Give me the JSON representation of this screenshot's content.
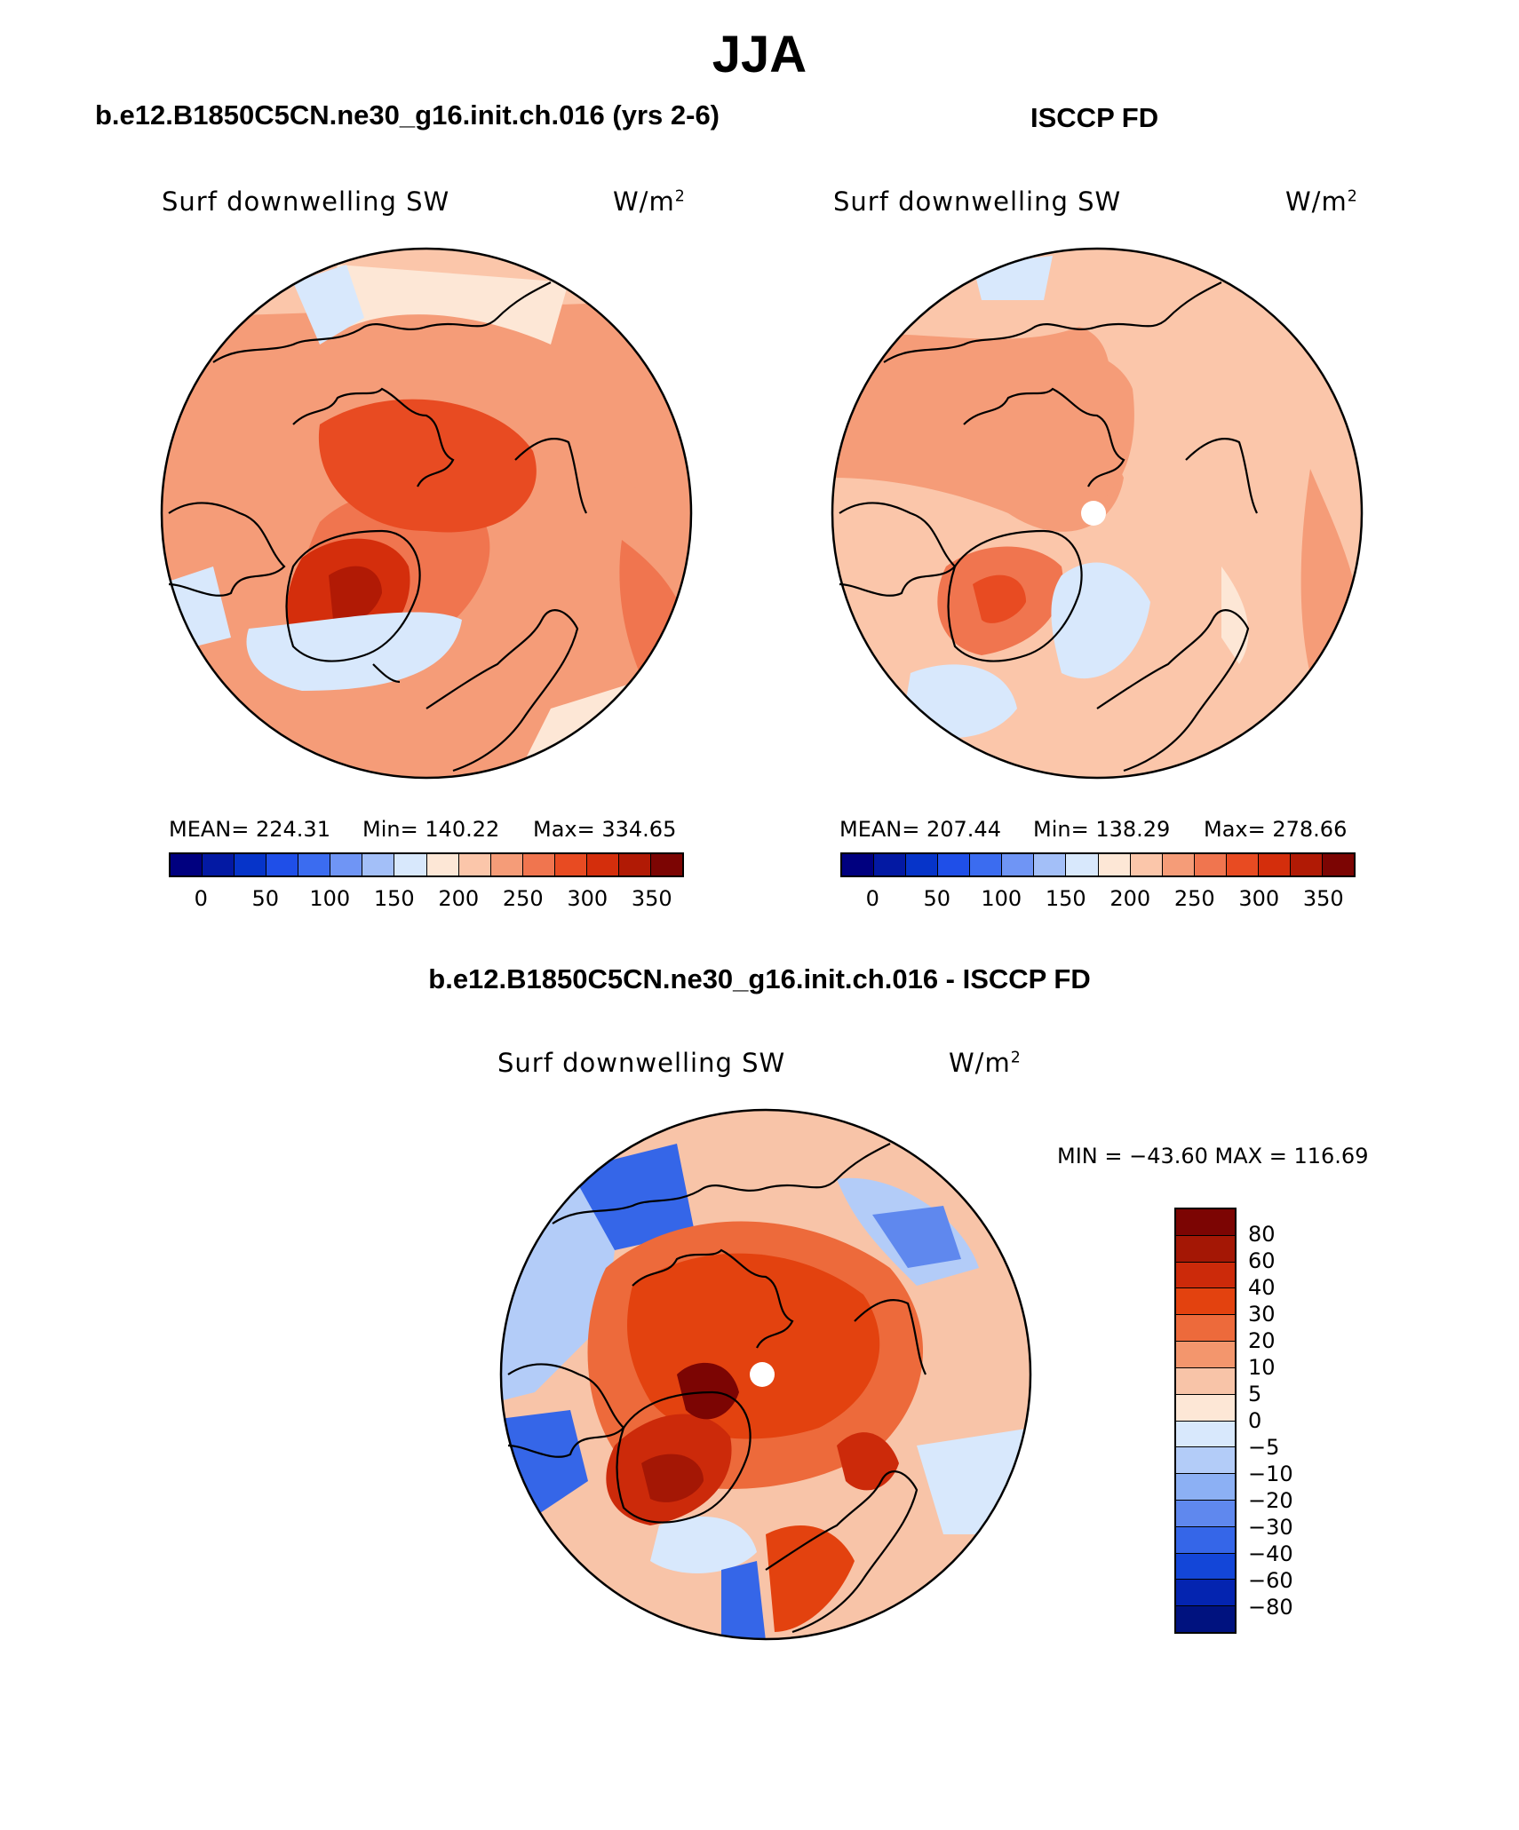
{
  "title": "JJA",
  "panels": [
    {
      "id": "model",
      "header": "b.e12.B1850C5CN.ne30_g16.init.ch.016 (yrs 2-6)",
      "variable": "Surf downwelling SW",
      "units_base": "W/m",
      "units_exp": "2",
      "stats": {
        "mean": "MEAN= 224.31",
        "min": "Min= 140.22",
        "max": "Max= 334.65"
      },
      "colorbar_ticks": [
        "0",
        "50",
        "100",
        "150",
        "200",
        "250",
        "300",
        "350"
      ]
    },
    {
      "id": "obs",
      "header": "ISCCP FD",
      "variable": "Surf downwelling SW",
      "units_base": "W/m",
      "units_exp": "2",
      "stats": {
        "mean": "MEAN= 207.44",
        "min": "Min= 138.29",
        "max": "Max= 278.66"
      },
      "colorbar_ticks": [
        "0",
        "50",
        "100",
        "150",
        "200",
        "250",
        "300",
        "350"
      ]
    },
    {
      "id": "diff",
      "header": "b.e12.B1850C5CN.ne30_g16.init.ch.016 - ISCCP FD",
      "variable": "Surf downwelling SW",
      "units_base": "W/m",
      "units_exp": "2",
      "minmax": "MIN = −43.60  MAX = 116.69",
      "colorbar_ticks": [
        "80",
        "60",
        "40",
        "30",
        "20",
        "10",
        "5",
        "0",
        "−5",
        "−10",
        "−20",
        "−30",
        "−40",
        "−60",
        "−80"
      ]
    }
  ],
  "colors": {
    "abs_scale": [
      "#00007f",
      "#0319a3",
      "#0634c9",
      "#1f4fe8",
      "#3b6cf0",
      "#6f95f5",
      "#a3bff8",
      "#d8e8fc",
      "#fde7d6",
      "#fbc6aa",
      "#f59c78",
      "#f0754f",
      "#e84b22",
      "#d42e0c",
      "#b11a05",
      "#7c0503"
    ],
    "diff_scale": [
      "#7c0503",
      "#a41705",
      "#cc2a0a",
      "#e3420f",
      "#ed6a3b",
      "#f3966d",
      "#f8c4a8",
      "#fde7d6",
      "#d8e8fc",
      "#b3ccf8",
      "#8cb0f4",
      "#5f88ee",
      "#3566e8",
      "#1346d8",
      "#0424b0",
      "#00127f"
    ],
    "land_outline": "#000000"
  }
}
